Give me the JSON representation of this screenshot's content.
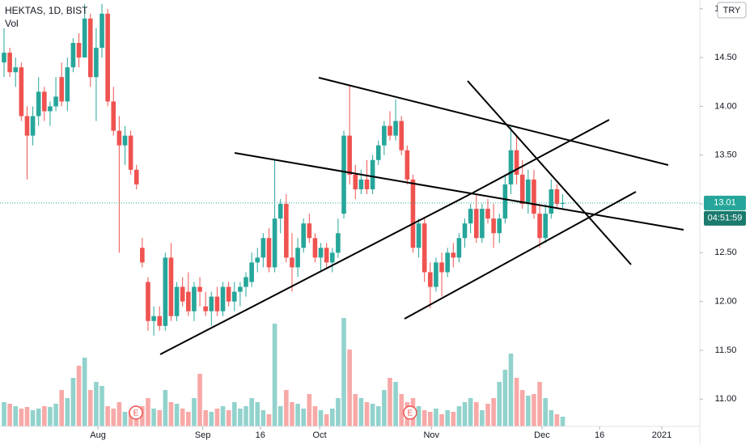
{
  "chart_data": {
    "type": "candlestick",
    "title": "HEKTAS, 1D, BIST",
    "volume_label": "Vol",
    "currency": "TRY",
    "countdown": "04:51:59",
    "last_price": 13.01,
    "up_color": "#26a69a",
    "down_color": "#ef5350",
    "ylim": [
      10.72,
      15.09
    ],
    "yticks": [
      {
        "value": 11,
        "label": "11.00"
      },
      {
        "value": 11.5,
        "label": "11.50"
      },
      {
        "value": 12,
        "label": "12.00"
      },
      {
        "value": 12.5,
        "label": "12.50"
      },
      {
        "value": 13,
        "label": "13.00"
      },
      {
        "value": 13.5,
        "label": "13.50"
      },
      {
        "value": 14,
        "label": "14.00"
      },
      {
        "value": 14.5,
        "label": "14.50"
      },
      {
        "value": 15,
        "label": "15.00"
      }
    ],
    "xlim": [
      -0.7,
      120.8
    ],
    "xticks": [
      {
        "value": 16.3,
        "label": "Aug"
      },
      {
        "value": 34.5,
        "label": "Sep"
      },
      {
        "value": 44.5,
        "label": "16"
      },
      {
        "value": 54.8,
        "label": "Oct"
      },
      {
        "value": 74.2,
        "label": "Nov"
      },
      {
        "value": 93.4,
        "label": "Dec"
      },
      {
        "value": 103.4,
        "label": "16"
      },
      {
        "value": 114.2,
        "label": "2021"
      }
    ],
    "volume_lim": [
      0,
      400
    ],
    "events": [
      {
        "label": "E",
        "x": 22.9
      },
      {
        "label": "E",
        "x": 70.5
      }
    ],
    "open": [
      14.45,
      14.55,
      14.35,
      14.4,
      13.9,
      13.7,
      13.9,
      14.15,
      13.95,
      14.0,
      14.3,
      14.05,
      14.4,
      14.65,
      14.5,
      14.9,
      14.3,
      14.6,
      14.95,
      14.05,
      13.75,
      13.6,
      13.7,
      13.35,
      12.55,
      12.2,
      11.8,
      11.85,
      11.75,
      12.45,
      11.85,
      12.15,
      12.1,
      11.9,
      12.15,
      11.95,
      11.9,
      12.05,
      11.9,
      12.15,
      12.0,
      12.1,
      12.15,
      12.2,
      12.4,
      12.45,
      12.65,
      12.35,
      12.85,
      13.0,
      12.45,
      12.35,
      12.55,
      12.8,
      12.65,
      12.45,
      12.55,
      12.4,
      12.5,
      12.9,
      13.7,
      13.3,
      13.15,
      13.25,
      13.15,
      13.45,
      13.6,
      13.8,
      13.7,
      13.85,
      13.55,
      13.25,
      12.55,
      12.8,
      12.3,
      12.15,
      12.4,
      12.3,
      12.5,
      12.45,
      12.65,
      12.8,
      12.95,
      12.65,
      12.95,
      12.85,
      12.7,
      12.85,
      13.2,
      13.55,
      13.3,
      13.0,
      13.25,
      12.9,
      12.65,
      12.9,
      13.15,
      13.0
    ],
    "high": [
      14.8,
      14.6,
      14.5,
      14.45,
      14.0,
      14.0,
      14.3,
      14.2,
      14.05,
      14.3,
      14.45,
      14.5,
      14.7,
      14.75,
      15.05,
      14.95,
      14.8,
      15.05,
      15.0,
      14.2,
      13.9,
      13.8,
      13.75,
      13.4,
      12.65,
      12.25,
      11.95,
      11.95,
      12.5,
      12.6,
      12.2,
      12.25,
      12.3,
      12.2,
      12.25,
      12.1,
      12.1,
      12.15,
      12.2,
      12.2,
      12.2,
      12.2,
      12.3,
      12.5,
      12.55,
      12.7,
      12.75,
      13.45,
      13.05,
      13.1,
      12.7,
      12.65,
      12.85,
      12.9,
      12.7,
      12.6,
      12.6,
      12.55,
      12.85,
      13.75,
      14.22,
      13.4,
      13.35,
      13.45,
      13.5,
      13.65,
      13.85,
      13.95,
      14.07,
      13.9,
      13.6,
      13.3,
      12.85,
      12.85,
      12.4,
      12.45,
      12.5,
      12.55,
      12.6,
      12.7,
      12.85,
      13.0,
      13.1,
      13.0,
      13.05,
      13.0,
      12.9,
      13.3,
      13.8,
      13.7,
      13.45,
      13.35,
      13.35,
      13.0,
      13.0,
      13.25,
      13.2,
      13.1
    ],
    "low": [
      14.3,
      14.3,
      14.2,
      13.85,
      13.25,
      13.6,
      13.8,
      13.85,
      13.8,
      13.95,
      14.0,
      13.95,
      14.35,
      14.4,
      14.5,
      14.2,
      13.85,
      14.5,
      14.0,
      13.7,
      12.5,
      13.4,
      13.3,
      13.15,
      12.35,
      11.7,
      11.65,
      11.7,
      11.7,
      11.8,
      11.8,
      11.95,
      11.85,
      11.8,
      11.95,
      11.85,
      11.75,
      11.85,
      11.85,
      11.95,
      11.9,
      11.95,
      12.05,
      12.15,
      12.3,
      12.35,
      12.3,
      12.3,
      12.7,
      12.4,
      12.1,
      12.25,
      12.5,
      12.6,
      12.4,
      12.3,
      12.35,
      12.3,
      12.45,
      12.85,
      13.2,
      13.05,
      13.1,
      13.1,
      13.1,
      13.4,
      13.5,
      13.65,
      13.65,
      13.5,
      13.2,
      12.5,
      12.45,
      12.2,
      11.93,
      12.1,
      12.05,
      12.25,
      12.35,
      12.4,
      12.55,
      12.7,
      12.6,
      12.6,
      12.8,
      12.55,
      12.6,
      12.8,
      13.1,
      13.2,
      12.95,
      12.9,
      12.85,
      12.55,
      12.6,
      12.85,
      12.95,
      12.95
    ],
    "close": [
      14.55,
      14.35,
      14.4,
      13.9,
      13.7,
      13.9,
      14.15,
      13.95,
      14.0,
      14.1,
      14.05,
      14.4,
      14.65,
      14.5,
      14.9,
      14.3,
      14.6,
      14.95,
      14.05,
      13.75,
      13.6,
      13.7,
      13.35,
      13.2,
      12.4,
      11.8,
      11.85,
      11.75,
      12.45,
      11.85,
      12.15,
      12.0,
      11.9,
      12.15,
      12.1,
      11.9,
      12.05,
      11.9,
      12.15,
      12.0,
      12.1,
      12.15,
      12.25,
      12.4,
      12.45,
      12.65,
      12.35,
      12.85,
      13.0,
      12.45,
      12.35,
      12.55,
      12.8,
      12.65,
      12.45,
      12.55,
      12.4,
      12.5,
      12.7,
      13.7,
      13.3,
      13.15,
      13.25,
      13.15,
      13.45,
      13.6,
      13.8,
      13.7,
      13.85,
      13.55,
      13.25,
      12.55,
      12.8,
      12.3,
      12.15,
      12.4,
      12.3,
      12.5,
      12.45,
      12.65,
      12.8,
      12.95,
      12.65,
      12.95,
      12.85,
      12.7,
      12.85,
      13.2,
      13.55,
      13.3,
      13.0,
      13.25,
      12.9,
      12.65,
      12.9,
      13.15,
      13.0,
      13.01
    ],
    "volume": [
      30,
      28,
      25,
      22,
      24,
      20,
      22,
      25,
      24,
      28,
      45,
      35,
      60,
      75,
      85,
      45,
      55,
      50,
      25,
      22,
      30,
      18,
      20,
      15,
      25,
      35,
      22,
      20,
      45,
      30,
      28,
      22,
      18,
      35,
      65,
      20,
      18,
      22,
      25,
      20,
      30,
      22,
      25,
      35,
      30,
      20,
      15,
      127,
      25,
      45,
      30,
      28,
      22,
      40,
      25,
      20,
      15,
      22,
      35,
      134,
      95,
      40,
      35,
      30,
      28,
      25,
      45,
      60,
      55,
      40,
      30,
      35,
      25,
      20,
      18,
      22,
      15,
      20,
      18,
      25,
      30,
      35,
      30,
      20,
      28,
      35,
      55,
      70,
      90,
      60,
      45,
      38,
      40,
      55,
      35,
      20,
      15,
      12
    ]
  }
}
